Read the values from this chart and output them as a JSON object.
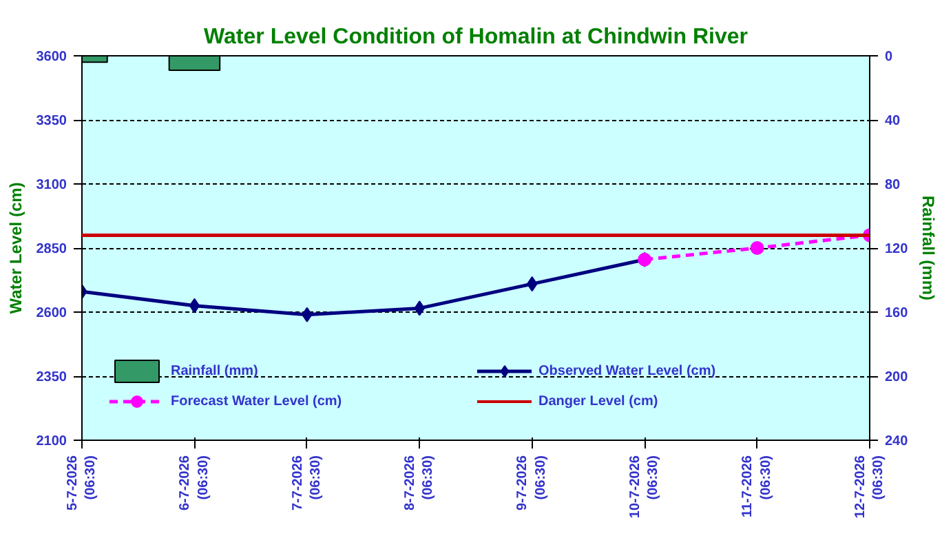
{
  "chart_data": {
    "type": "line",
    "title": "Water Level Condition of Homalin at Chindwin River",
    "ylabel": "Water Level (cm)",
    "y2label": "Rainfall (mm)",
    "categories": [
      "5-7-2026\n(06:30)",
      "6-7-2026\n(06:30)",
      "7-7-2026\n(06:30)",
      "8-7-2026\n(06:30)",
      "9-7-2026\n(06:30)",
      "10-7-2026\n(06:30)",
      "11-7-2026\n(06:30)",
      "12-7-2026\n(06:30)"
    ],
    "series": [
      {
        "name": "Rainfall (mm)",
        "type": "bar",
        "axis": "y2",
        "color": "#339966",
        "values": [
          4,
          9,
          null,
          null,
          null,
          null,
          null,
          null
        ]
      },
      {
        "name": "Observed Water Level (cm)",
        "color": "#000080",
        "marker": "diamond",
        "line_style": "solid",
        "values": [
          2680,
          2625,
          2590,
          2615,
          2710,
          2805,
          null,
          null
        ]
      },
      {
        "name": "Forecast Water Level (cm)",
        "color": "#ff00ff",
        "marker": "circle",
        "line_style": "dashed",
        "values": [
          null,
          null,
          null,
          null,
          null,
          2805,
          2850,
          2900
        ]
      }
    ],
    "ref_lines": [
      {
        "axis": "y",
        "value": 2900,
        "label": "Danger Level (cm)",
        "color": "#cc0000",
        "line_style": "solid"
      }
    ],
    "ylim": [
      2100,
      3600
    ],
    "yticks": [
      2100,
      2350,
      2600,
      2850,
      3100,
      3350,
      3600
    ],
    "y2lim": [
      240,
      0
    ],
    "y2ticks": [
      0,
      40,
      80,
      120,
      160,
      200,
      240
    ],
    "grid": "y",
    "legend": "bottom"
  }
}
